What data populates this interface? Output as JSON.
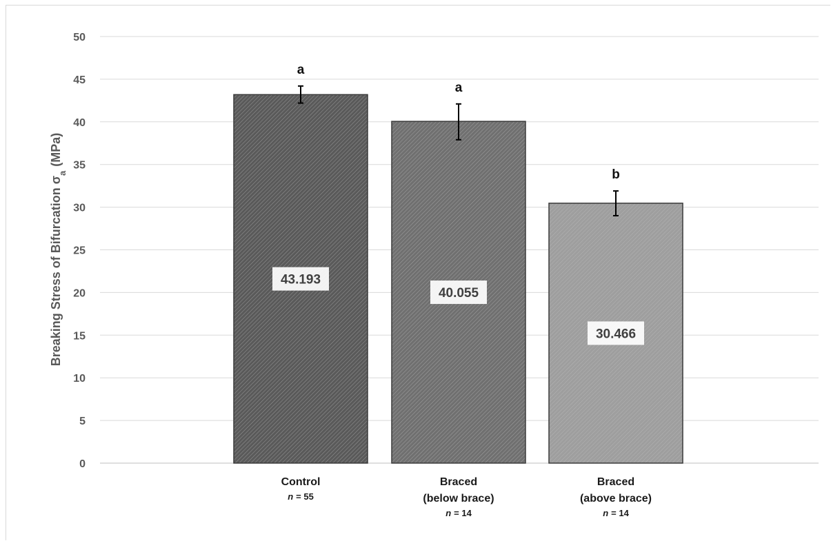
{
  "chart_data": {
    "type": "bar",
    "ylabel": "Breaking Stress of Bifurcation σ",
    "ylabel_subscript": "a",
    "ylabel_unit": "(MPa)",
    "ylim": [
      0,
      50
    ],
    "yticks": [
      "0",
      "5",
      "10",
      "15",
      "20",
      "25",
      "30",
      "35",
      "40",
      "45",
      "50"
    ],
    "grid": true,
    "categories": [
      {
        "lines": [
          "Control"
        ],
        "n_prefix": "n",
        "n_value": "= 55"
      },
      {
        "lines": [
          "Braced",
          "(below brace)"
        ],
        "n_prefix": "n",
        "n_value": "= 14"
      },
      {
        "lines": [
          "Braced",
          "(above brace)"
        ],
        "n_prefix": "n",
        "n_value": "= 14"
      }
    ],
    "values": [
      43.193,
      40.055,
      30.466
    ],
    "value_labels": [
      "43.193",
      "40.055",
      "30.466"
    ],
    "error_bars": [
      {
        "low": 42.2,
        "high": 44.2
      },
      {
        "low": 37.9,
        "high": 42.1
      },
      {
        "low": 29.0,
        "high": 31.9
      }
    ],
    "significance": [
      "a",
      "a",
      "b"
    ],
    "colors": {
      "bar_fills": [
        "#5a5a5a",
        "#707070",
        "#9e9e9e"
      ],
      "stripe": "#c8c8c8",
      "bar_outline": "#3a3a3a",
      "grid": "#d9d9d9",
      "axis_text": "#595959"
    }
  }
}
